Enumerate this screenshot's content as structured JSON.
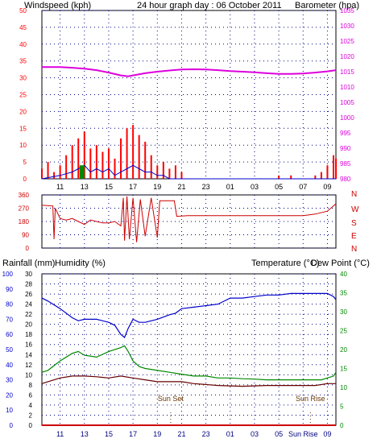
{
  "header": {
    "left_label": "Windspeed (kph)",
    "title": "24 hour graph day : 06 October 2011",
    "right_label": "Barometer (hpa)"
  },
  "colors": {
    "wind": "#ff0000",
    "gust_area": "#ff0000",
    "avg_wind": "#0000cc",
    "baro": "#dd00dd",
    "dir": "#cc0000",
    "hum": "#0000cc",
    "temp": "#008800",
    "dew": "#660000",
    "rain": "#cc0000",
    "grid": "#000080"
  },
  "chart_data": [
    {
      "type": "line",
      "name": "wind-barometer",
      "xlabel": "",
      "x_ticks": [
        "11",
        "13",
        "15",
        "17",
        "19",
        "21",
        "23",
        "01",
        "03",
        "05",
        "07",
        "09"
      ],
      "y_left": {
        "label": "Windspeed (kph)",
        "range": [
          0,
          50
        ],
        "ticks": [
          0,
          5,
          10,
          15,
          20,
          25,
          30,
          35,
          40,
          45,
          50
        ]
      },
      "y_right": {
        "label": "Barometer (hpa)",
        "range": [
          980,
          1035
        ],
        "ticks": [
          980,
          985,
          990,
          995,
          1000,
          1005,
          1010,
          1015,
          1020,
          1025,
          1030,
          1035
        ]
      },
      "series": [
        {
          "name": "Barometer",
          "axis": "right",
          "x": [
            9.5,
            11,
            12,
            13,
            14,
            15,
            16,
            16.6,
            17,
            18,
            19,
            20,
            21,
            22,
            23,
            24,
            25,
            26,
            27,
            28,
            29,
            30,
            31,
            32,
            33,
            33.7
          ],
          "values": [
            1016.5,
            1016.5,
            1016.3,
            1016,
            1015.5,
            1014.7,
            1013.8,
            1013.5,
            1013.8,
            1014.5,
            1015,
            1015.4,
            1015.7,
            1015.8,
            1015.7,
            1015.5,
            1015.2,
            1015,
            1014.8,
            1014.5,
            1014.3,
            1014.3,
            1014.4,
            1014.7,
            1015.1,
            1015.5
          ]
        },
        {
          "name": "Windspeed",
          "axis": "left",
          "x": [
            9.5,
            10,
            10.5,
            11,
            11.5,
            12,
            12.5,
            13,
            13.5,
            14,
            14.5,
            15,
            15.5,
            16,
            16.5,
            17,
            17.5,
            18,
            18.5,
            19,
            19.5,
            20,
            20.5,
            21,
            21.5,
            22,
            24,
            26,
            28,
            29,
            30,
            31,
            32,
            32.5,
            33,
            33.5,
            33.7
          ],
          "values": [
            3,
            5,
            2,
            4,
            7,
            10,
            12,
            14,
            9,
            10,
            8,
            9,
            6,
            12,
            15,
            16,
            13,
            11,
            7,
            4,
            5,
            3,
            4,
            2,
            0,
            0,
            0,
            0,
            0,
            1,
            1,
            0,
            1,
            2,
            4,
            7,
            6
          ]
        },
        {
          "name": "Average",
          "axis": "left",
          "x": [
            9.5,
            11,
            12,
            12.5,
            13,
            13.5,
            14,
            14.5,
            15,
            15.5,
            16,
            16.5,
            17,
            17.5,
            18,
            18.5,
            19,
            19.5,
            20,
            21,
            22,
            33.7
          ],
          "values": [
            0,
            1,
            2,
            3,
            4,
            2,
            3,
            2,
            3,
            1,
            2,
            3,
            4,
            3,
            2,
            2,
            1,
            1,
            0,
            0,
            0,
            0
          ]
        }
      ]
    },
    {
      "type": "line",
      "name": "wind-direction",
      "y_left_ticks": [
        0,
        90,
        180,
        270,
        360
      ],
      "y_right_labels": [
        "N",
        "W",
        "S",
        "E",
        "N"
      ],
      "ylim": [
        0,
        360
      ],
      "x": [
        9.5,
        10.4,
        10.5,
        10.6,
        11,
        11.5,
        12,
        12.5,
        13,
        13.5,
        14,
        14.5,
        15,
        15.5,
        16,
        16.2,
        16.3,
        16.5,
        16.7,
        17,
        17.3,
        17.6,
        18,
        18.5,
        19,
        19.2,
        19.8,
        20,
        20.4,
        20.6,
        21.5,
        23,
        25,
        27,
        29,
        31,
        32,
        33,
        33.7
      ],
      "values": [
        290,
        285,
        60,
        270,
        200,
        190,
        200,
        180,
        160,
        190,
        180,
        170,
        170,
        180,
        150,
        340,
        50,
        350,
        60,
        340,
        40,
        330,
        80,
        340,
        70,
        320,
        320,
        320,
        320,
        215,
        220,
        220,
        220,
        220,
        220,
        220,
        230,
        250,
        300
      ]
    },
    {
      "type": "line",
      "name": "rain-humidity-temperature",
      "left_labels": [
        "Rainfall (mm)",
        "Humidity (%)"
      ],
      "right_labels": [
        "Temperature (°C)",
        "Dew Point (°C)"
      ],
      "y_hum": {
        "range": [
          0,
          100
        ],
        "ticks": [
          0,
          10,
          20,
          30,
          40,
          50,
          60,
          70,
          80,
          90,
          100
        ]
      },
      "y_rain": {
        "range": [
          0,
          30
        ],
        "ticks": [
          0,
          2,
          4,
          6,
          8,
          10,
          12,
          14,
          16,
          18,
          20,
          22,
          24,
          26,
          28,
          30
        ]
      },
      "y_temp": {
        "range": [
          0,
          40
        ],
        "ticks": [
          0,
          5,
          10,
          15,
          20,
          25,
          30,
          35,
          40
        ]
      },
      "x_ticks": [
        "11",
        "13",
        "15",
        "17",
        "19",
        "21",
        "23",
        "01",
        "03",
        "05",
        "Sun Rise",
        "09"
      ],
      "annotations": [
        "Sun Set",
        "Sun Rise"
      ],
      "series": [
        {
          "name": "Humidity",
          "axis": "hum",
          "x": [
            9.5,
            10,
            11,
            12,
            12.5,
            13,
            14,
            15,
            15.5,
            16,
            16.3,
            16.6,
            17,
            17.5,
            18,
            19,
            20,
            20.5,
            21,
            22,
            23,
            24,
            25,
            26,
            27,
            28,
            29,
            30,
            31,
            32,
            32.5,
            33,
            33.5,
            33.7
          ],
          "values": [
            84,
            82,
            77,
            71,
            69,
            70,
            70,
            68,
            66,
            60,
            58,
            64,
            70,
            68,
            68,
            70,
            73,
            74,
            77,
            78,
            79,
            80,
            84,
            84,
            85,
            86,
            86,
            87,
            87,
            87,
            87,
            87,
            85,
            83
          ]
        },
        {
          "name": "Temperature",
          "axis": "temp",
          "x": [
            9.5,
            10,
            11,
            12,
            12.5,
            13,
            14,
            15,
            16,
            16.3,
            16.6,
            17,
            17.5,
            18,
            19,
            20,
            21,
            22,
            23,
            24,
            25,
            26,
            27,
            28,
            29,
            30,
            31,
            32,
            32.5,
            33,
            33.5,
            33.7
          ],
          "values": [
            14,
            14.5,
            17,
            19,
            19.5,
            18.5,
            18,
            19.5,
            20.5,
            21,
            19.5,
            17,
            15.5,
            15,
            14.5,
            14,
            13.5,
            13,
            13,
            12.5,
            12.5,
            12.3,
            12.2,
            12,
            12,
            12,
            12,
            12,
            12,
            12.5,
            13,
            14
          ]
        },
        {
          "name": "Dew Point",
          "axis": "temp",
          "x": [
            9.5,
            10,
            11,
            12,
            13,
            14,
            15,
            16,
            17,
            18,
            19,
            20,
            21,
            22,
            24,
            26,
            28,
            30,
            32,
            33,
            33.7
          ],
          "values": [
            11,
            11.5,
            12.5,
            13,
            13,
            12.8,
            12.5,
            13,
            12.5,
            12,
            11.5,
            11.5,
            11.5,
            11,
            10.5,
            10.3,
            10.5,
            10.5,
            10.5,
            11,
            11
          ]
        },
        {
          "name": "Rainfall",
          "axis": "rain",
          "x": [
            9.5,
            33.7
          ],
          "values": [
            0,
            0
          ]
        }
      ]
    }
  ]
}
